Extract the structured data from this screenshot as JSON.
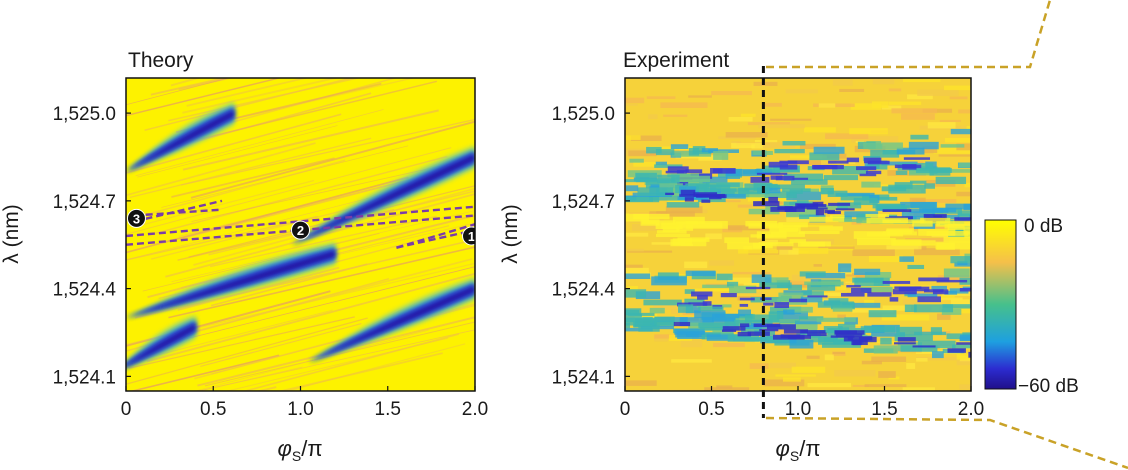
{
  "chart_data": [
    {
      "type": "heatmap",
      "title": "Theory",
      "xlabel_symbol": "φ",
      "xlabel_sub": "S",
      "xlabel_suffix": "/π",
      "ylabel": "λ (nm)",
      "xlim": [
        0,
        2.0
      ],
      "ylim": [
        1524.05,
        1525.12
      ],
      "xticks": [
        0,
        0.5,
        1.0,
        1.5,
        2.0
      ],
      "xtick_labels": [
        "0",
        "0.5",
        "1.0",
        "1.5",
        "2.0"
      ],
      "yticks": [
        1525.0,
        1524.7,
        1524.4,
        1524.1
      ],
      "ytick_labels": [
        "1,525.0",
        "1,524.7",
        "1,524.4",
        "1,524.1"
      ],
      "stopbands": [
        {
          "x": [
            0.0,
            0.62
          ],
          "y": [
            1524.8,
            1525.0
          ]
        },
        {
          "x": [
            0.95,
            2.0
          ],
          "y": [
            1524.55,
            1524.85
          ]
        },
        {
          "x": [
            0.0,
            1.2
          ],
          "y": [
            1524.3,
            1524.52
          ]
        },
        {
          "x": [
            1.05,
            2.0
          ],
          "y": [
            1524.15,
            1524.4
          ]
        },
        {
          "x": [
            -0.05,
            0.4
          ],
          "y": [
            1524.12,
            1524.27
          ]
        }
      ],
      "paths": [
        {
          "label": "1",
          "points": [
            [
              1.55,
              1524.54
            ],
            [
              2.0,
              1524.62
            ]
          ],
          "marker_at": [
            1.98,
            1524.58
          ]
        },
        {
          "label": "2",
          "points": [
            [
              0.0,
              1524.55
            ],
            [
              2.0,
              1524.65
            ]
          ],
          "marker_at": [
            1.0,
            1524.6
          ]
        },
        {
          "label": "3",
          "points": [
            [
              0.05,
              1524.65
            ],
            [
              0.55,
              1524.67
            ]
          ],
          "marker_at": [
            0.06,
            1524.64
          ]
        }
      ]
    },
    {
      "type": "heatmap",
      "title": "Experiment",
      "xlabel_symbol": "φ",
      "xlabel_sub": "S",
      "xlabel_suffix": "/π",
      "ylabel": "λ (nm)",
      "xlim": [
        0,
        2.0
      ],
      "ylim": [
        1524.05,
        1525.12
      ],
      "xticks": [
        0,
        0.5,
        1.0,
        1.5,
        2.0
      ],
      "xtick_labels": [
        "0",
        "0.5",
        "1.0",
        "1.5",
        "2.0"
      ],
      "yticks": [
        1525.0,
        1524.7,
        1524.4,
        1524.1
      ],
      "ytick_labels": [
        "1,525.0",
        "1,524.7",
        "1,524.4",
        "1,524.1"
      ],
      "cut_at_x": 0.8
    }
  ],
  "colorbar": {
    "max_label": "0 dB",
    "min_label": "−60 dB",
    "colors": [
      "#ffff00",
      "#f5c04a",
      "#46c08c",
      "#1ea0e0",
      "#2c2cd0",
      "#20108a"
    ]
  }
}
